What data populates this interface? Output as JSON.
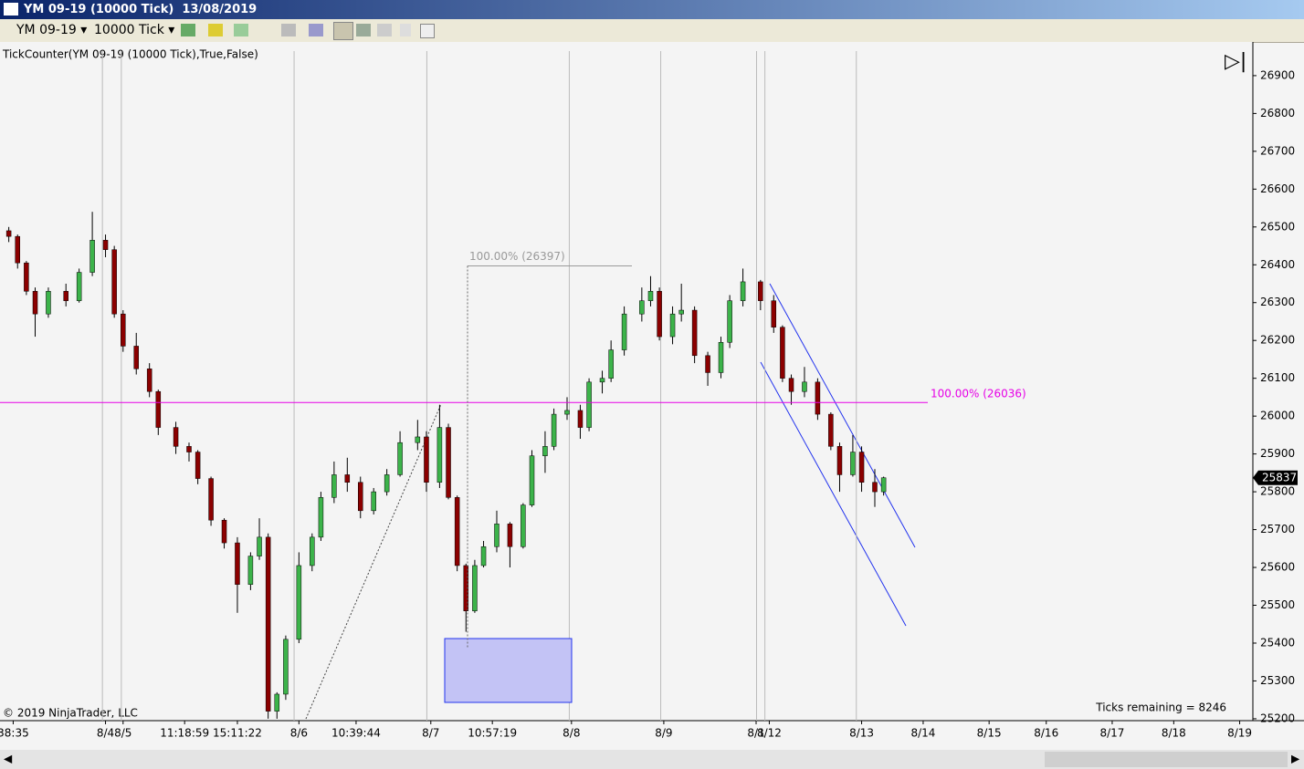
{
  "window": {
    "title": "YM 09-19 (10000 Tick)  13/08/2019",
    "instrument": "YM 09-19",
    "interval": "10000 Tick"
  },
  "chart_data": {
    "type": "candlestick",
    "indicator": "TickCounter(YM  09-19  (10000  Tick),True,False)",
    "copyright": "© 2019 NinjaTrader, LLC",
    "ticks_remaining": "Ticks remaining = 8246",
    "last_price": 25837,
    "up_color": "#3cb34a",
    "down_color": "#8b0000",
    "ylim": [
      25195,
      26989
    ],
    "yticks": [
      25200,
      25300,
      25400,
      25500,
      25600,
      25700,
      25800,
      25900,
      26000,
      26100,
      26200,
      26300,
      26400,
      26500,
      26600,
      26700,
      26800,
      26900
    ],
    "xlim": [
      0,
      285
    ],
    "xticks": [
      {
        "value": 3,
        "label": "38:35"
      },
      {
        "value": 24,
        "label": "8/4"
      },
      {
        "value": 28,
        "label": "8/5"
      },
      {
        "value": 42,
        "label": "11:18:59"
      },
      {
        "value": 54,
        "label": "15:11:22"
      },
      {
        "value": 68,
        "label": "8/6"
      },
      {
        "value": 81,
        "label": "10:39:44"
      },
      {
        "value": 98,
        "label": "8/7"
      },
      {
        "value": 112,
        "label": "10:57:19"
      },
      {
        "value": 130,
        "label": "8/8"
      },
      {
        "value": 151,
        "label": "8/9"
      },
      {
        "value": 172,
        "label": "8/1"
      },
      {
        "value": 175,
        "label": "8/12"
      },
      {
        "value": 196,
        "label": "8/13"
      },
      {
        "value": 210,
        "label": "8/14"
      },
      {
        "value": 225,
        "label": "8/15"
      },
      {
        "value": 238,
        "label": "8/16"
      },
      {
        "value": 253,
        "label": "8/17"
      },
      {
        "value": 267,
        "label": "8/18"
      },
      {
        "value": 282,
        "label": "8/19"
      }
    ],
    "session_lines": [
      23.3,
      27.6,
      66.9,
      97.1,
      129.5,
      150.3,
      172.1,
      174,
      194.8
    ],
    "levels": [
      {
        "label": "100.00% (26036)",
        "value": 26036,
        "color": "#e600e6"
      },
      {
        "label": "100.00% (26397)",
        "value": 26397,
        "color": "#999999"
      }
    ],
    "candles": [
      [
        2,
        26490,
        26500,
        26460,
        26475
      ],
      [
        4,
        26475,
        26480,
        26390,
        26405
      ],
      [
        6,
        26405,
        26410,
        26320,
        26330
      ],
      [
        8,
        26330,
        26340,
        26210,
        26270
      ],
      [
        11,
        26270,
        26340,
        26260,
        26330
      ],
      [
        15,
        26330,
        26350,
        26290,
        26305
      ],
      [
        18,
        26305,
        26390,
        26300,
        26380
      ],
      [
        21,
        26380,
        26540,
        26370,
        26465
      ],
      [
        24,
        26465,
        26480,
        26420,
        26440
      ],
      [
        26,
        26440,
        26450,
        26260,
        26270
      ],
      [
        28,
        26270,
        26280,
        26170,
        26185
      ],
      [
        31,
        26185,
        26220,
        26110,
        26125
      ],
      [
        34,
        26125,
        26140,
        26050,
        26065
      ],
      [
        36,
        26065,
        26070,
        25950,
        25970
      ],
      [
        40,
        25970,
        25985,
        25900,
        25920
      ],
      [
        43,
        25920,
        25930,
        25880,
        25905
      ],
      [
        45,
        25905,
        25910,
        25820,
        25835
      ],
      [
        48,
        25835,
        25840,
        25710,
        25725
      ],
      [
        51,
        25725,
        25730,
        25650,
        25665
      ],
      [
        54,
        25665,
        25680,
        25480,
        25555
      ],
      [
        57,
        25555,
        25640,
        25540,
        25630
      ],
      [
        59,
        25630,
        25730,
        25620,
        25680
      ],
      [
        61,
        25680,
        25690,
        25200,
        25220
      ],
      [
        63,
        25220,
        25270,
        25200,
        25265
      ],
      [
        65,
        25265,
        25420,
        25250,
        25410
      ],
      [
        68,
        25410,
        25640,
        25400,
        25605
      ],
      [
        71,
        25605,
        25690,
        25590,
        25680
      ],
      [
        73,
        25680,
        25800,
        25670,
        25785
      ],
      [
        76,
        25785,
        25880,
        25770,
        25845
      ],
      [
        79,
        25845,
        25890,
        25800,
        25825
      ],
      [
        82,
        25825,
        25840,
        25730,
        25750
      ],
      [
        85,
        25750,
        25810,
        25740,
        25800
      ],
      [
        88,
        25800,
        25860,
        25790,
        25845
      ],
      [
        91,
        25845,
        25960,
        25840,
        25930
      ],
      [
        95,
        25930,
        25990,
        25910,
        25945
      ],
      [
        97,
        25945,
        25960,
        25800,
        25825
      ],
      [
        100,
        25825,
        26030,
        25810,
        25970
      ],
      [
        102,
        25970,
        25980,
        25780,
        25785
      ],
      [
        104,
        25785,
        25790,
        25590,
        25605
      ],
      [
        106,
        25605,
        25610,
        25430,
        25485
      ],
      [
        108,
        25485,
        25620,
        25480,
        25605
      ],
      [
        110,
        25605,
        25670,
        25600,
        25655
      ],
      [
        113,
        25655,
        25750,
        25640,
        25715
      ],
      [
        116,
        25715,
        25720,
        25600,
        25655
      ],
      [
        119,
        25655,
        25770,
        25650,
        25765
      ],
      [
        121,
        25765,
        25910,
        25760,
        25895
      ],
      [
        124,
        25895,
        25960,
        25850,
        25920
      ],
      [
        126,
        25920,
        26020,
        25910,
        26005
      ],
      [
        129,
        26005,
        26050,
        25990,
        26015
      ],
      [
        132,
        26015,
        26030,
        25940,
        25970
      ],
      [
        134,
        25970,
        26100,
        25960,
        26090
      ],
      [
        137,
        26090,
        26120,
        26060,
        26100
      ],
      [
        139,
        26100,
        26200,
        26090,
        26175
      ],
      [
        142,
        26175,
        26290,
        26160,
        26270
      ],
      [
        146,
        26270,
        26340,
        26250,
        26305
      ],
      [
        148,
        26305,
        26370,
        26290,
        26330
      ],
      [
        150,
        26330,
        26340,
        26200,
        26210
      ],
      [
        153,
        26210,
        26290,
        26190,
        26270
      ],
      [
        155,
        26270,
        26350,
        26250,
        26280
      ],
      [
        158,
        26280,
        26290,
        26140,
        26160
      ],
      [
        161,
        26160,
        26170,
        26080,
        26115
      ],
      [
        164,
        26115,
        26210,
        26100,
        26195
      ],
      [
        166,
        26195,
        26320,
        26180,
        26305
      ],
      [
        169,
        26305,
        26390,
        26290,
        26355
      ],
      [
        173,
        26355,
        26360,
        26280,
        26305
      ],
      [
        176,
        26305,
        26320,
        26220,
        26235
      ],
      [
        178,
        26235,
        26240,
        26090,
        26100
      ],
      [
        180,
        26100,
        26110,
        26030,
        26065
      ],
      [
        183,
        26065,
        26130,
        26050,
        26090
      ],
      [
        186,
        26090,
        26100,
        25990,
        26005
      ],
      [
        189,
        26005,
        26010,
        25910,
        25920
      ],
      [
        191,
        25920,
        25930,
        25800,
        25845
      ],
      [
        194,
        25845,
        25950,
        25840,
        25905
      ],
      [
        196,
        25905,
        25920,
        25800,
        25825
      ],
      [
        199,
        25825,
        25860,
        25760,
        25800
      ],
      [
        201,
        25800,
        25840,
        25790,
        25837
      ]
    ]
  }
}
